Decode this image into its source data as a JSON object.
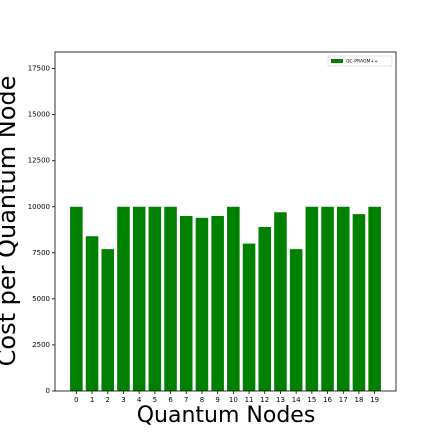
{
  "chart_data": {
    "type": "bar",
    "xlabel": "Quantum Nodes",
    "ylabel": "Cost per Quantum Node",
    "categories": [
      "0",
      "1",
      "2",
      "3",
      "4",
      "5",
      "6",
      "7",
      "8",
      "9",
      "10",
      "11",
      "12",
      "13",
      "14",
      "15",
      "16",
      "17",
      "18",
      "19"
    ],
    "series": [
      {
        "name": "QC-PRAGM++",
        "color": "#008000",
        "values": [
          10000,
          8400,
          7700,
          10000,
          10000,
          10000,
          10000,
          9500,
          9400,
          9500,
          10000,
          8000,
          8900,
          9700,
          7700,
          10000,
          10000,
          10000,
          9600,
          10000
        ]
      }
    ],
    "ylim": [
      0,
      18400
    ],
    "yticks": [
      0,
      2500,
      5000,
      7500,
      10000,
      12500,
      15000,
      17500
    ],
    "legend": "upper right"
  }
}
